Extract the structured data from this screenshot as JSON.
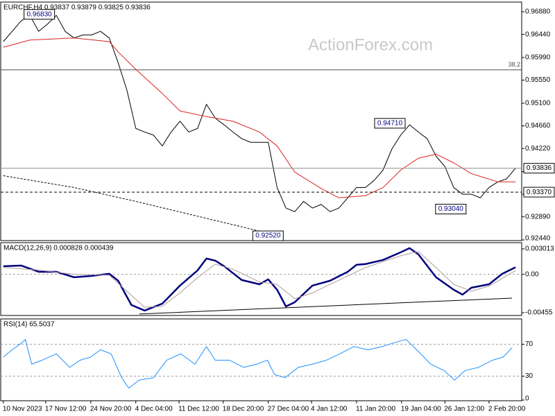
{
  "chart_data": [
    {
      "type": "line",
      "title": "EURCHF,H4 0.93837 0.93879 0.93825 0.93836",
      "watermark": "ActionForex.com",
      "xlim": [
        -0.3,
        58.7
      ],
      "ylim": [
        0.92427,
        0.97069
      ],
      "yticks": [
        {
          "value": 0.9688,
          "label": "0.96880"
        },
        {
          "value": 0.9644,
          "label": "0.96440"
        },
        {
          "value": 0.9599,
          "label": "0.95990"
        },
        {
          "value": 0.9555,
          "label": "0.95550"
        },
        {
          "value": 0.951,
          "label": "0.95100"
        },
        {
          "value": 0.9466,
          "label": "0.94660"
        },
        {
          "value": 0.9422,
          "label": "0.94220"
        },
        {
          "value": 0.9377,
          "label": "0.93770"
        },
        {
          "value": 0.9333,
          "label": "0.93330"
        },
        {
          "value": 0.9289,
          "label": "0.92890"
        },
        {
          "value": 0.9244,
          "label": "0.92440"
        }
      ],
      "series": [
        {
          "color": "#000000",
          "line_width": 1,
          "values": [
            0.963,
            0.965,
            0.967,
            0.9681,
            0.965,
            0.9664,
            0.9681,
            0.965,
            0.9637,
            0.9643,
            0.9643,
            0.965,
            0.9637,
            0.9589,
            0.9535,
            0.9461,
            0.9454,
            0.9448,
            0.9427,
            0.9454,
            0.9475,
            0.9454,
            0.9461,
            0.9508,
            0.9481,
            0.9468,
            0.9454,
            0.9441,
            0.9434,
            0.9434,
            0.9434,
            0.9346,
            0.9306,
            0.9299,
            0.9319,
            0.9306,
            0.9313,
            0.9299,
            0.9306,
            0.9326,
            0.9346,
            0.9346,
            0.936,
            0.938,
            0.9421,
            0.9448,
            0.9468,
            0.9454,
            0.9441,
            0.9407,
            0.9387,
            0.9346,
            0.9333,
            0.9333,
            0.9326,
            0.9346,
            0.9357,
            0.9363,
            0.93836
          ]
        },
        {
          "color": "#dd2020",
          "line_width": 1,
          "x": [
            0,
            3,
            8,
            12,
            13,
            15,
            18,
            20,
            23,
            26,
            29,
            31,
            33,
            36,
            38,
            41,
            43,
            45,
            47,
            49,
            51,
            53,
            56,
            58
          ],
          "values": [
            0.9619,
            0.9633,
            0.9637,
            0.963,
            0.961,
            0.9576,
            0.9529,
            0.9495,
            0.9484,
            0.9475,
            0.9454,
            0.9427,
            0.9376,
            0.9344,
            0.9326,
            0.933,
            0.9346,
            0.938,
            0.9403,
            0.9411,
            0.9394,
            0.9373,
            0.9357,
            0.9357
          ]
        },
        {
          "color": "#000000",
          "line_width": 1,
          "dash": true,
          "x": [
            0,
            8,
            15,
            23,
            30
          ],
          "values": [
            0.9369,
            0.9346,
            0.9319,
            0.9286,
            0.9257
          ]
        }
      ],
      "fib_level": {
        "value": 0.9575,
        "label": "38.2"
      },
      "support_level": {
        "value": 0.9337,
        "label": "0.93370"
      },
      "current_price": 0.93836,
      "annotations": [
        {
          "x": 5.8,
          "value": 0.9683,
          "label": "0.96830"
        },
        {
          "x": 31.7,
          "value": 0.9252,
          "label": "0.92520"
        },
        {
          "x": 45.5,
          "value": 0.9471,
          "label": "0.94710"
        },
        {
          "x": 52.4,
          "value": 0.9304,
          "label": "0.93040"
        }
      ]
    },
    {
      "type": "line",
      "title": "MACD(12,26,9) 0.000828 0.000439",
      "xlim": [
        -0.3,
        58.7
      ],
      "ylim": [
        -0.00488,
        0.00375
      ],
      "yticks": [
        0.003013,
        {
          "value": 0,
          "label": "0.00"
        },
        -0.00455
      ],
      "levels": [
        0
      ],
      "series": [
        {
          "color": "#00007f",
          "line_width": 2.5,
          "x": [
            0,
            2,
            4,
            6,
            8,
            10,
            12,
            13,
            14.5,
            16,
            18,
            20,
            22,
            23,
            24,
            25,
            27,
            29,
            30,
            31,
            32,
            33,
            35,
            37,
            39,
            40,
            41,
            43,
            45,
            46,
            47,
            49,
            51,
            52,
            53,
            55,
            56.5,
            58
          ],
          "values": [
            0.00096,
            0.00104,
            0.0003,
            0.0003,
            -0.00035,
            -0.00019,
            6e-05,
            -0.00076,
            -0.00364,
            -0.0043,
            -0.00348,
            -0.00134,
            0.00047,
            0.00187,
            0.00162,
            0.00096,
            -0.00068,
            -0.00118,
            -0.0006,
            -0.00183,
            -0.00381,
            -0.00331,
            -0.00134,
            -0.00076,
            0.0003,
            0.00113,
            0.00121,
            0.0017,
            0.00261,
            0.0031,
            0.00236,
            -0.00035,
            -0.00183,
            -0.00241,
            -0.00159,
            -0.00118,
            6e-05,
            0.000828
          ]
        },
        {
          "color": "#b09a9a",
          "line_width": 1,
          "x": [
            0,
            4,
            8,
            12,
            14.5,
            16,
            18,
            20,
            22,
            24,
            26,
            29,
            31,
            33,
            35,
            37,
            39,
            41,
            45,
            47,
            49,
            51,
            53,
            55,
            58
          ],
          "values": [
            0.0008,
            0.0005,
            0,
            -0.0001,
            -0.0025,
            -0.0039,
            -0.0038,
            -0.0022,
            -0.0004,
            0.0012,
            0.0006,
            -0.0009,
            -0.0012,
            -0.0029,
            -0.0022,
            -0.0012,
            -0.0002,
            0.0008,
            0.0022,
            0.0027,
            0.0008,
            -0.0012,
            -0.002,
            -0.0014,
            0.000439
          ]
        },
        {
          "color": "#000000",
          "line_width": 1,
          "x": [
            15.4,
            57.6
          ],
          "values": [
            -0.00471,
            -0.00282
          ]
        }
      ]
    },
    {
      "type": "line",
      "title": "RSI(14) 65.5037",
      "xlim": [
        -0.3,
        58.7
      ],
      "ylim": [
        -0.87,
        101.7
      ],
      "yticks": [
        70,
        30,
        0
      ],
      "levels": [
        70,
        30
      ],
      "series": [
        {
          "color": "#1e90ff",
          "line_width": 1,
          "x": [
            0,
            1,
            2,
            2.5,
            3.2,
            4.4,
            6,
            7.5,
            8.7,
            9.9,
            11,
            12.2,
            13.4,
            14.2,
            15.4,
            17,
            18.5,
            20.1,
            21.7,
            23,
            24,
            25.6,
            27.2,
            28.7,
            29.9,
            30.7,
            31.9,
            33.4,
            35,
            36.6,
            38.1,
            39.7,
            41.3,
            42.9,
            44,
            45.6,
            46.8,
            48.4,
            49.9,
            51.1,
            52.3,
            53.8,
            55.4,
            56.6,
            57.6
          ],
          "values": [
            54,
            63,
            71,
            76,
            45,
            50,
            58,
            41,
            50,
            54,
            63,
            58,
            28,
            15,
            25,
            28,
            50,
            58,
            45,
            67,
            50,
            50,
            41,
            45,
            50,
            32,
            28,
            41,
            45,
            50,
            58,
            67,
            63,
            67,
            71,
            76,
            63,
            45,
            37,
            25,
            37,
            41,
            50,
            54,
            65.5037
          ]
        }
      ],
      "xticks": [
        {
          "value": 0,
          "label": "10 Nov 2023"
        },
        {
          "value": 4.8,
          "label": "17 Nov 12:00"
        },
        {
          "value": 9.9,
          "label": "24 Nov 20:00"
        },
        {
          "value": 15,
          "label": "4 Dec 04:00"
        },
        {
          "value": 19.9,
          "label": "11 Dec 12:00"
        },
        {
          "value": 24.9,
          "label": "18 Dec 20:00"
        },
        {
          "value": 30,
          "label": "27 Dec 04:00"
        },
        {
          "value": 34.9,
          "label": "4 Jan 12:00"
        },
        {
          "value": 40,
          "label": "11 Jan 20:00"
        },
        {
          "value": 45.1,
          "label": "19 Jan 04:00"
        },
        {
          "value": 50,
          "label": "26 Jan 12:00"
        },
        {
          "value": 55,
          "label": "2 Feb 20:00"
        }
      ]
    }
  ]
}
